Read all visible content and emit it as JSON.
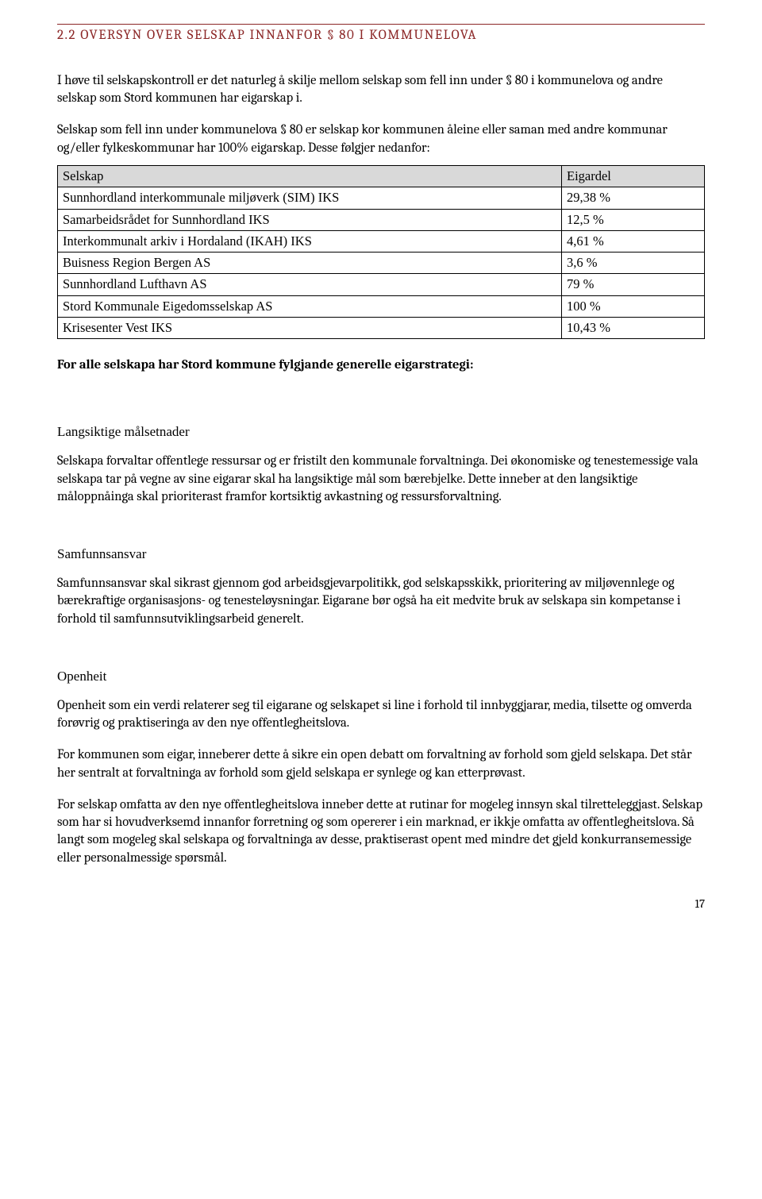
{
  "heading": "2.2 OVERSYN OVER SELSKAP INNANFOR § 80 I KOMMUNELOVA",
  "intro_p1": "I høve til selskapskontroll er det naturleg å skilje mellom selskap som fell inn under § 80 i kommunelova og andre selskap som Stord kommunen har eigarskap i.",
  "intro_p2": "Selskap som fell inn under kommunelova § 80 er selskap kor kommunen åleine eller saman med andre kommunar og/eller fylkeskommunar har 100% eigarskap. Desse følgjer nedanfor:",
  "table": {
    "columns": [
      "Selskap",
      "Eigardel"
    ],
    "rows": [
      [
        "Sunnhordland interkommunale miljøverk (SIM) IKS",
        "29,38 %"
      ],
      [
        "Samarbeidsrådet for Sunnhordland IKS",
        "12,5 %"
      ],
      [
        "Interkommunalt arkiv i Hordaland (IKAH) IKS",
        "4,61 %"
      ],
      [
        "Buisness Region Bergen AS",
        "3,6 %"
      ],
      [
        "Sunnhordland Lufthavn AS",
        "79 %"
      ],
      [
        "Stord Kommunale Eigedomsselskap AS",
        "100 %"
      ],
      [
        "Krisesenter Vest IKS",
        "10,43 %"
      ]
    ],
    "header_bg": "#d9d9d9",
    "border_color": "#000000"
  },
  "strategy_bold": "For alle selskapa har Stord kommune fylgjande generelle eigarstrategi:",
  "sec1": {
    "title": "Langsiktige målsetnader",
    "p": "Selskapa forvaltar offentlege ressursar og er fristilt den kommunale forvaltninga. Dei økonomiske og tenestemessige vala selskapa tar på vegne av sine eigarar skal ha langsiktige mål som bærebjelke. Dette inneber at den langsiktige måloppnåinga skal prioriterast framfor kortsiktig avkastning og ressursforvaltning."
  },
  "sec2": {
    "title": "Samfunnsansvar",
    "p": "Samfunnsansvar skal sikrast gjennom god arbeidsgjevarpolitikk, god selskapsskikk, prioritering av miljøvennlege og bærekraftige organisasjons- og tenesteløysningar. Eigarane bør også ha eit medvite bruk av selskapa sin kompetanse i forhold til samfunnsutviklingsarbeid generelt."
  },
  "sec3": {
    "title": "Openheit",
    "p1": "Openheit som ein verdi relaterer seg til eigarane og selskapet si line i forhold til innbyggjarar, media, tilsette og omverda forøvrig og praktiseringa av den nye offentlegheitslova.",
    "p2": "For kommunen som eigar, inneberer dette å sikre ein open debatt om forvaltning av forhold som gjeld selskapa. Det står her sentralt at forvaltninga av forhold som gjeld selskapa er synlege og kan etterprøvast.",
    "p3": "For selskap omfatta av den nye offentlegheitslova inneber dette at rutinar for mogeleg innsyn skal tilretteleggjast. Selskap som har si hovudverksemd innanfor forretning og som opererer i ein marknad, er ikkje omfatta av offentlegheitslova. Så langt som mogeleg skal selskapa og forvaltninga av desse, praktiserast opent med mindre det gjeld konkurransemessige eller personalmessige spørsmål."
  },
  "page_number": "17",
  "colors": {
    "heading": "#8b2626",
    "text": "#000000",
    "background": "#ffffff"
  }
}
